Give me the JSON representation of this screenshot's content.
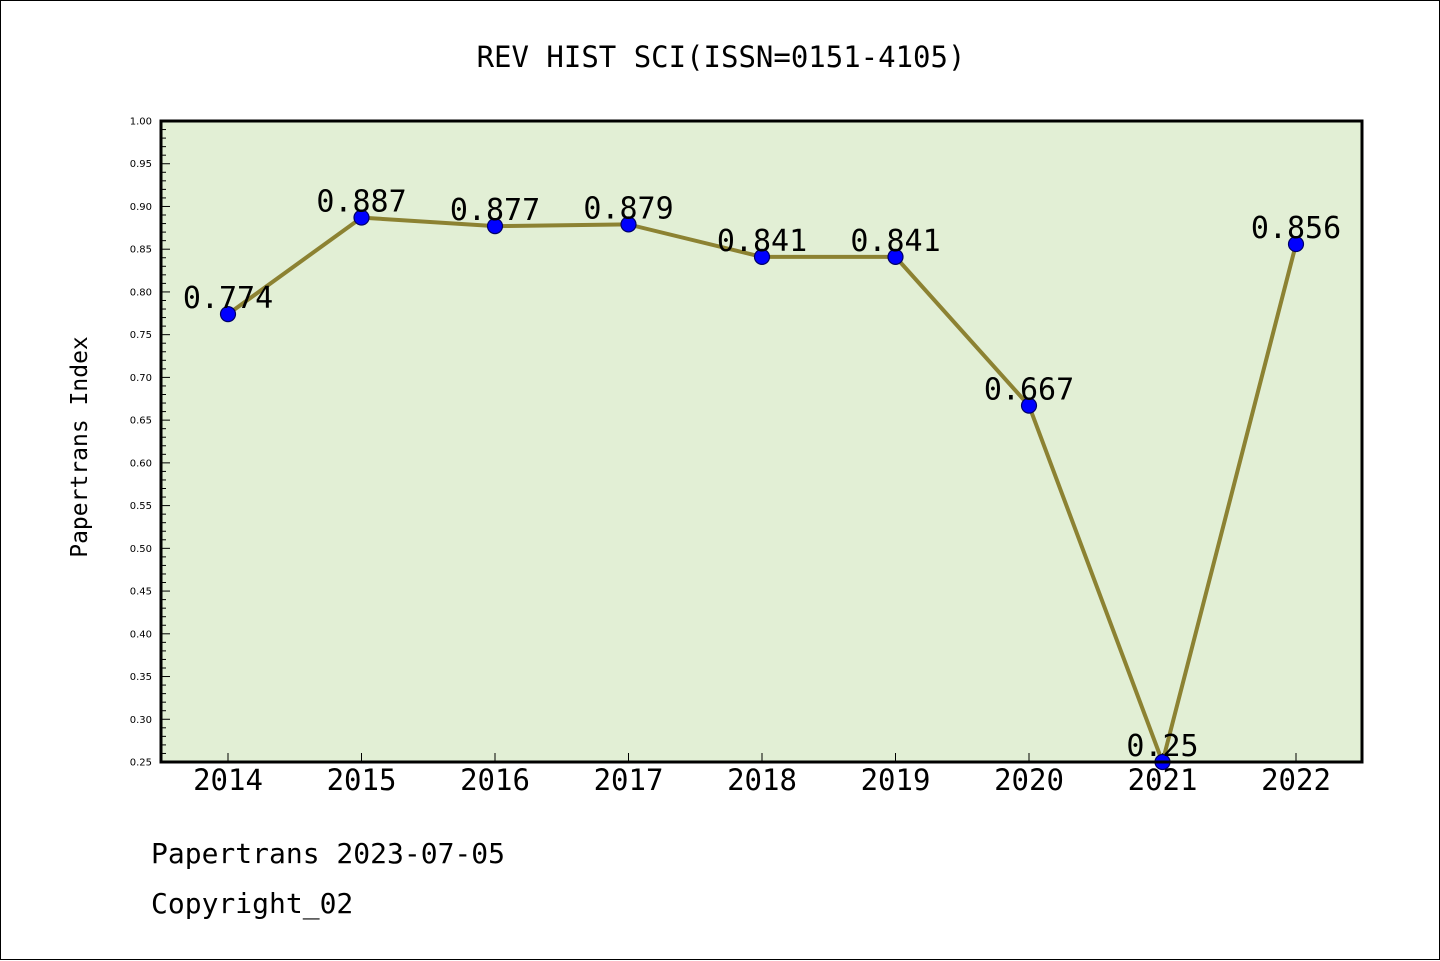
{
  "chart_data": {
    "type": "line",
    "title": "REV HIST SCI(ISSN=0151-4105)",
    "xlabel": "",
    "ylabel": "Papertrans Index",
    "categories": [
      "2014",
      "2015",
      "2016",
      "2017",
      "2018",
      "2019",
      "2020",
      "2021",
      "2022"
    ],
    "series": [
      {
        "values": [
          0.774,
          0.887,
          0.877,
          0.879,
          0.841,
          0.841,
          0.667,
          0.25,
          0.856
        ],
        "labels": [
          "0.774",
          "0.887",
          "0.877",
          "0.879",
          "0.841",
          "0.841",
          "0.667",
          "0.25",
          "0.856"
        ]
      }
    ],
    "ylim": [
      0.25,
      1.0
    ],
    "yticks": [
      "0.25",
      "0.30",
      "0.35",
      "0.40",
      "0.45",
      "0.50",
      "0.55",
      "0.60",
      "0.65",
      "0.70",
      "0.75",
      "0.80",
      "0.85",
      "0.90",
      "0.95",
      "1.00"
    ],
    "grid": false,
    "colors": {
      "plot_background": "#e2efd5",
      "line": "#8c8232",
      "marker_fill": "#0000ff",
      "marker_edge": "#000066"
    }
  },
  "footer": {
    "line1": "Papertrans 2023-07-05",
    "line2": "Copyright_02"
  }
}
